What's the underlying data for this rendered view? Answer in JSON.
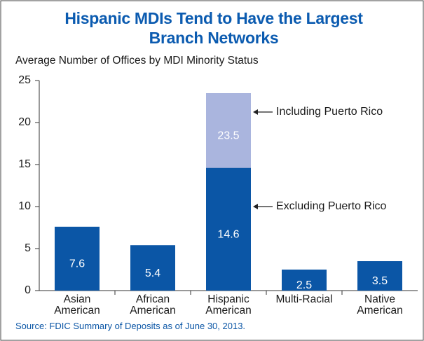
{
  "chart_data": {
    "type": "bar",
    "title": "Hispanic MDIs Tend to Have the Largest Branch Networks",
    "subtitle": "Average Number of Offices by MDI Minority Status",
    "source": "Source: FDIC Summary of Deposits as of June 30,  2013.",
    "categories": [
      "Asian American",
      "African American",
      "Hispanic American",
      "Multi-Racial",
      "Native American"
    ],
    "series": [
      {
        "name": "Including Puerto Rico",
        "color": "#aab5de",
        "values": [
          null,
          null,
          23.5,
          null,
          null
        ]
      },
      {
        "name": "Excluding Puerto Rico",
        "color": "#0b56a6",
        "values": [
          7.6,
          5.4,
          14.6,
          2.5,
          3.5
        ]
      }
    ],
    "ylim": [
      0,
      25
    ],
    "yticks": [
      0,
      5,
      10,
      15,
      20,
      25
    ]
  }
}
